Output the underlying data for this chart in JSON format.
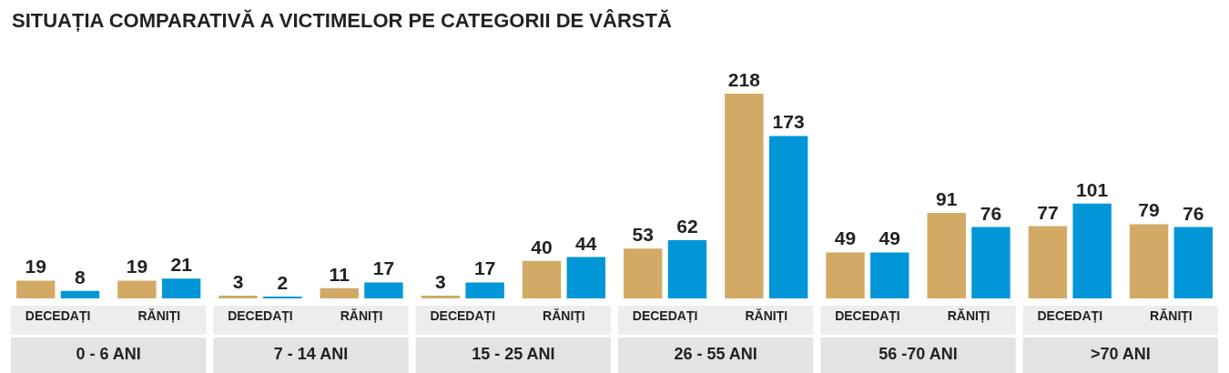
{
  "chart_data": {
    "type": "bar",
    "title": "SITUAȚIA COMPARATIVĂ A VICTIMELOR PE CATEGORII DE VÂRSTĂ",
    "categories": [
      "DECEDAȚI",
      "RĂNIȚI",
      "DECEDAȚI",
      "RĂNIȚI",
      "DECEDAȚI",
      "RĂNIȚI",
      "DECEDAȚI",
      "RĂNIȚI",
      "DECEDAȚI",
      "RĂNIȚI",
      "DECEDAȚI",
      "RĂNIȚI"
    ],
    "series": [
      {
        "color": "#d2aa66",
        "values": [
          19,
          19,
          3,
          11,
          3,
          40,
          53,
          218,
          49,
          91,
          77,
          79
        ]
      },
      {
        "color": "#0096d8",
        "values": [
          8,
          21,
          2,
          17,
          17,
          44,
          62,
          173,
          49,
          76,
          101,
          76
        ]
      }
    ],
    "data_labels": true,
    "annotations": [
      "0 - 6 ANI",
      "7 - 14 ANI",
      "15 - 25 ANI",
      "26 - 55 ANI",
      "56 -70 ANI",
      ">70 ANI"
    ]
  }
}
